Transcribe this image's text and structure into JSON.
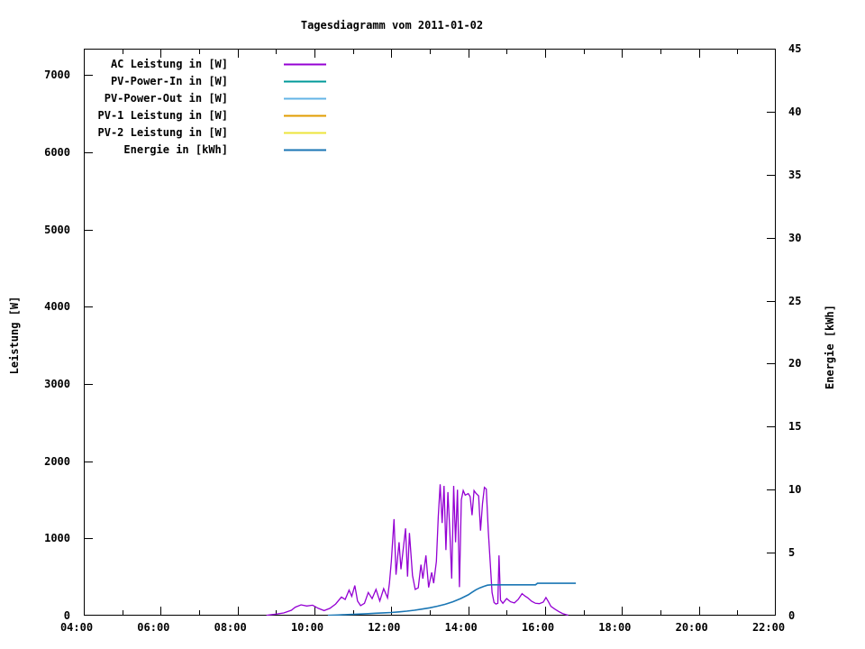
{
  "title": "Tagesdiagramm vom 2011-01-02",
  "chart_data": {
    "type": "line",
    "title": "Tagesdiagramm vom 2011-01-02",
    "xlabel": "",
    "ylabel": "Leistung [W]",
    "y2label": "Energie [kWh]",
    "background": "#ffffff",
    "border_color": "#000000",
    "grid": "off",
    "legend_position": "top-left-inside",
    "axes": {
      "x": {
        "start_hour": 4,
        "end_hour": 22,
        "major_ticks": [
          {
            "t": 4,
            "label": "04:00"
          },
          {
            "t": 6,
            "label": "06:00"
          },
          {
            "t": 8,
            "label": "08:00"
          },
          {
            "t": 10,
            "label": "10:00"
          },
          {
            "t": 12,
            "label": "12:00"
          },
          {
            "t": 14,
            "label": "14:00"
          },
          {
            "t": 16,
            "label": "16:00"
          },
          {
            "t": 18,
            "label": "18:00"
          },
          {
            "t": 20,
            "label": "20:00"
          },
          {
            "t": 22,
            "label": "22:00"
          }
        ],
        "minor_tick_hours": [
          5,
          7,
          9,
          11,
          13,
          15,
          17,
          19,
          21
        ]
      },
      "left": {
        "label": "Leistung [W]",
        "range_max": 7340,
        "ticks": [
          {
            "v": 0,
            "label": "0"
          },
          {
            "v": 1000,
            "label": "1000"
          },
          {
            "v": 2000,
            "label": "2000"
          },
          {
            "v": 3000,
            "label": "3000"
          },
          {
            "v": 4000,
            "label": "4000"
          },
          {
            "v": 5000,
            "label": "5000"
          },
          {
            "v": 6000,
            "label": "6000"
          },
          {
            "v": 7000,
            "label": "7000"
          }
        ]
      },
      "right": {
        "label": "Energie [kWh]",
        "range_max": 45,
        "ticks": [
          {
            "v": 0,
            "label": "0"
          },
          {
            "v": 5,
            "label": "5"
          },
          {
            "v": 10,
            "label": "10"
          },
          {
            "v": 15,
            "label": "15"
          },
          {
            "v": 20,
            "label": "20"
          },
          {
            "v": 25,
            "label": "25"
          },
          {
            "v": 30,
            "label": "30"
          },
          {
            "v": 35,
            "label": "35"
          },
          {
            "v": 40,
            "label": "40"
          },
          {
            "v": 45,
            "label": "45"
          }
        ]
      }
    },
    "series": [
      {
        "id": "ac-leistung",
        "name": "AC Leistung in [W]",
        "color": "#9400d3",
        "axis": "left",
        "x": [
          8.75,
          9.0,
          9.2,
          9.4,
          9.5,
          9.65,
          9.8,
          9.95,
          10.1,
          10.25,
          10.4,
          10.55,
          10.7,
          10.8,
          10.9,
          10.97,
          11.05,
          11.12,
          11.2,
          11.3,
          11.4,
          11.5,
          11.6,
          11.7,
          11.8,
          11.9,
          11.95,
          12.0,
          12.07,
          12.12,
          12.2,
          12.25,
          12.37,
          12.42,
          12.47,
          12.55,
          12.62,
          12.7,
          12.77,
          12.82,
          12.9,
          12.97,
          13.05,
          13.1,
          13.17,
          13.22,
          13.27,
          13.32,
          13.37,
          13.42,
          13.47,
          13.52,
          13.57,
          13.62,
          13.67,
          13.72,
          13.77,
          13.82,
          13.87,
          13.92,
          14.0,
          14.05,
          14.1,
          14.15,
          14.2,
          14.27,
          14.32,
          14.37,
          14.42,
          14.47,
          14.52,
          14.57,
          14.62,
          14.67,
          14.72,
          14.77,
          14.8,
          14.84,
          14.9,
          15.0,
          15.1,
          15.2,
          15.3,
          15.4,
          15.47,
          15.55,
          15.65,
          15.75,
          15.85,
          15.95,
          16.02,
          16.08,
          16.15,
          16.25,
          16.35,
          16.45,
          16.55,
          16.6
        ],
        "y": [
          5,
          20,
          35,
          70,
          110,
          140,
          125,
          135,
          95,
          65,
          95,
          150,
          240,
          210,
          330,
          250,
          390,
          190,
          130,
          160,
          300,
          220,
          340,
          190,
          350,
          230,
          420,
          700,
          1250,
          530,
          950,
          600,
          1130,
          505,
          1070,
          520,
          340,
          360,
          660,
          480,
          780,
          365,
          560,
          420,
          700,
          1280,
          1700,
          1200,
          1680,
          850,
          1600,
          1100,
          480,
          1680,
          950,
          1630,
          370,
          1500,
          1620,
          1560,
          1580,
          1540,
          1300,
          1620,
          1585,
          1550,
          1100,
          1450,
          1660,
          1640,
          1100,
          700,
          300,
          170,
          150,
          160,
          780,
          200,
          160,
          220,
          180,
          165,
          210,
          285,
          255,
          230,
          185,
          160,
          155,
          175,
          235,
          185,
          120,
          85,
          55,
          28,
          12,
          6
        ]
      },
      {
        "id": "pv-power-in",
        "name": "PV-Power-In in [W]",
        "color": "#009999",
        "axis": "left",
        "x": [],
        "y": []
      },
      {
        "id": "pv-power-out",
        "name": "PV-Power-Out in [W]",
        "color": "#63b4e6",
        "axis": "left",
        "x": [],
        "y": []
      },
      {
        "id": "pv-1-leistung",
        "name": "PV-1 Leistung in [W]",
        "color": "#e09c00",
        "axis": "left",
        "x": [],
        "y": []
      },
      {
        "id": "pv-2-leistung",
        "name": "PV-2 Leistung in [W]",
        "color": "#ede43b",
        "axis": "left",
        "x": [],
        "y": []
      },
      {
        "id": "energie",
        "name": "Energie in [kWh]",
        "color": "#1a76b4",
        "axis": "right",
        "x": [
          10.35,
          10.6,
          10.8,
          11.0,
          11.2,
          11.4,
          11.6,
          11.8,
          12.0,
          12.2,
          12.4,
          12.6,
          12.8,
          13.0,
          13.2,
          13.4,
          13.6,
          13.8,
          14.0,
          14.1,
          14.2,
          14.3,
          14.4,
          14.5,
          14.6,
          15.75,
          15.8,
          16.8
        ],
        "y": [
          0.02,
          0.05,
          0.08,
          0.1,
          0.13,
          0.16,
          0.19,
          0.22,
          0.25,
          0.3,
          0.36,
          0.43,
          0.52,
          0.62,
          0.75,
          0.9,
          1.1,
          1.35,
          1.65,
          1.85,
          2.05,
          2.2,
          2.32,
          2.42,
          2.45,
          2.45,
          2.57,
          2.57
        ]
      }
    ]
  }
}
